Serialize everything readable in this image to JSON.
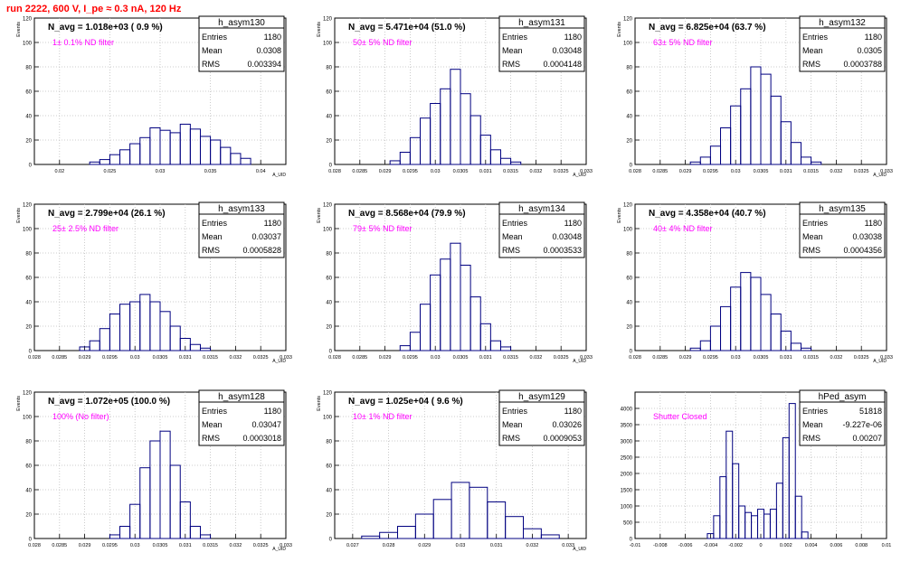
{
  "page": {
    "title": "run 2222,   600 V, I_pe ≈ 0.3 nA, 120 Hz"
  },
  "stats_labels": {
    "entries": "Entries",
    "mean": "Mean",
    "rms": "RMS"
  },
  "colors": {
    "hist_line": "#000080",
    "grid": "#bfbfbf",
    "note_text": "#ff00ff",
    "title_text": "#ff0000"
  },
  "panels": [
    {
      "name": "h_asym130",
      "navg": "N_avg = 1.018e+03 ( 0.9 %)",
      "filter": "1± 0.1% ND filter",
      "stats": {
        "entries": "1180",
        "mean": "0.0308",
        "rms": "0.003394"
      },
      "xlabel": "A_UID",
      "ylabel": "Events",
      "xticks": [
        "0.02",
        "0.025",
        "0.03",
        "0.035",
        "0.04"
      ],
      "yticks": [
        "0",
        "20",
        "40",
        "60",
        "80",
        "100",
        "120"
      ]
    },
    {
      "name": "h_asym131",
      "navg": "N_avg = 5.471e+04 (51.0 %)",
      "filter": "50± 5% ND filter",
      "stats": {
        "entries": "1180",
        "mean": "0.03048",
        "rms": "0.0004148"
      },
      "xlabel": "A_UID",
      "ylabel": "Events",
      "xticks": [
        "0.028",
        "0.0285",
        "0.029",
        "0.0295",
        "0.03",
        "0.0305",
        "0.031",
        "0.0315",
        "0.032",
        "0.0325",
        "0.033"
      ],
      "yticks": [
        "0",
        "20",
        "40",
        "60",
        "80",
        "100",
        "120"
      ]
    },
    {
      "name": "h_asym132",
      "navg": "N_avg = 6.825e+04 (63.7 %)",
      "filter": "63± 5% ND filter",
      "stats": {
        "entries": "1180",
        "mean": "0.0305",
        "rms": "0.0003788"
      },
      "xlabel": "A_UID",
      "ylabel": "Events",
      "xticks": [
        "0.028",
        "0.0285",
        "0.029",
        "0.0295",
        "0.03",
        "0.0305",
        "0.031",
        "0.0315",
        "0.032",
        "0.0325",
        "0.033"
      ],
      "yticks": [
        "0",
        "20",
        "40",
        "60",
        "80",
        "100",
        "120"
      ]
    },
    {
      "name": "h_asym133",
      "navg": "N_avg = 2.799e+04 (26.1 %)",
      "filter": "25± 2.5% ND filter",
      "stats": {
        "entries": "1180",
        "mean": "0.03037",
        "rms": "0.0005828"
      },
      "xlabel": "A_UID",
      "ylabel": "Events",
      "xticks": [
        "0.028",
        "0.0285",
        "0.029",
        "0.0295",
        "0.03",
        "0.0305",
        "0.031",
        "0.0315",
        "0.032",
        "0.0325",
        "0.033"
      ],
      "yticks": [
        "0",
        "20",
        "40",
        "60",
        "80",
        "100",
        "120"
      ]
    },
    {
      "name": "h_asym134",
      "navg": "N_avg = 8.568e+04 (79.9 %)",
      "filter": "79± 5% ND filter",
      "stats": {
        "entries": "1180",
        "mean": "0.03048",
        "rms": "0.0003533"
      },
      "xlabel": "A_UID",
      "ylabel": "Events",
      "xticks": [
        "0.028",
        "0.0285",
        "0.029",
        "0.0295",
        "0.03",
        "0.0305",
        "0.031",
        "0.0315",
        "0.032",
        "0.0325",
        "0.033"
      ],
      "yticks": [
        "0",
        "20",
        "40",
        "60",
        "80",
        "100",
        "120"
      ]
    },
    {
      "name": "h_asym135",
      "navg": "N_avg = 4.358e+04 (40.7 %)",
      "filter": "40± 4% ND filter",
      "stats": {
        "entries": "1180",
        "mean": "0.03038",
        "rms": "0.0004356"
      },
      "xlabel": "A_UID",
      "ylabel": "Events",
      "xticks": [
        "0.028",
        "0.0285",
        "0.029",
        "0.0295",
        "0.03",
        "0.0305",
        "0.031",
        "0.0315",
        "0.032",
        "0.0325",
        "0.033"
      ],
      "yticks": [
        "0",
        "20",
        "40",
        "60",
        "80",
        "100",
        "120"
      ]
    },
    {
      "name": "h_asym128",
      "navg": "N_avg = 1.072e+05 (100.0 %)",
      "filter": "100% (No filter)",
      "stats": {
        "entries": "1180",
        "mean": "0.03047",
        "rms": "0.0003018"
      },
      "xlabel": "A_UID",
      "ylabel": "Events",
      "xticks": [
        "0.028",
        "0.0285",
        "0.029",
        "0.0295",
        "0.03",
        "0.0305",
        "0.031",
        "0.0315",
        "0.032",
        "0.0325",
        "0.033"
      ],
      "yticks": [
        "0",
        "20",
        "40",
        "60",
        "80",
        "100",
        "120"
      ]
    },
    {
      "name": "h_asym129",
      "navg": "N_avg = 1.025e+04 ( 9.6 %)",
      "filter": "10± 1% ND filter",
      "stats": {
        "entries": "1180",
        "mean": "0.03026",
        "rms": "0.0009053"
      },
      "xlabel": "A_UID",
      "ylabel": "Events",
      "xticks": [
        "0.027",
        "0.028",
        "0.029",
        "0.03",
        "0.031",
        "0.032",
        "0.033"
      ],
      "yticks": [
        "0",
        "20",
        "40",
        "60",
        "80",
        "100",
        "120"
      ]
    },
    {
      "name": "hPed_asym",
      "navg": "",
      "filter": "Shutter Closed",
      "stats": {
        "entries": "51818",
        "mean": "-9.227e-06",
        "rms": "0.00207"
      },
      "xlabel": "",
      "ylabel": "",
      "xticks": [
        "-0.01",
        "-0.008",
        "-0.006",
        "-0.004",
        "-0.002",
        "0",
        "0.002",
        "0.004",
        "0.006",
        "0.008",
        "0.01"
      ],
      "yticks": [
        "0",
        "500",
        "1000",
        "1500",
        "2000",
        "2500",
        "3000",
        "3500",
        "4000"
      ]
    }
  ],
  "chart_data": [
    {
      "type": "bar",
      "title": "h_asym130",
      "xlabel": "A_UID",
      "ylabel": "Events",
      "xlim": [
        0.0175,
        0.0425
      ],
      "ylim": [
        0,
        120
      ],
      "grid": true,
      "legend": "top-right",
      "x": [
        0.0235,
        0.0245,
        0.0255,
        0.0265,
        0.0275,
        0.0285,
        0.0295,
        0.0305,
        0.0315,
        0.0325,
        0.0335,
        0.0345,
        0.0355,
        0.0365,
        0.0375,
        0.0385
      ],
      "values": [
        2,
        4,
        8,
        12,
        17,
        22,
        30,
        28,
        26,
        33,
        29,
        23,
        20,
        14,
        9,
        5
      ]
    },
    {
      "type": "bar",
      "title": "h_asym131",
      "xlabel": "A_UID",
      "ylabel": "Events",
      "xlim": [
        0.028,
        0.033
      ],
      "ylim": [
        0,
        120
      ],
      "grid": true,
      "legend": "top-right",
      "x": [
        0.0292,
        0.0294,
        0.0296,
        0.0298,
        0.03,
        0.0302,
        0.0304,
        0.0306,
        0.0308,
        0.031,
        0.0312,
        0.0314,
        0.0316
      ],
      "values": [
        3,
        10,
        22,
        38,
        50,
        62,
        78,
        58,
        40,
        24,
        12,
        5,
        2
      ]
    },
    {
      "type": "bar",
      "title": "h_asym132",
      "xlabel": "A_UID",
      "ylabel": "Events",
      "xlim": [
        0.028,
        0.033
      ],
      "ylim": [
        0,
        120
      ],
      "grid": true,
      "legend": "top-right",
      "x": [
        0.0292,
        0.0294,
        0.0296,
        0.0298,
        0.03,
        0.0302,
        0.0304,
        0.0306,
        0.0308,
        0.031,
        0.0312,
        0.0314,
        0.0316
      ],
      "values": [
        2,
        6,
        15,
        30,
        48,
        62,
        80,
        74,
        56,
        35,
        18,
        6,
        2
      ]
    },
    {
      "type": "bar",
      "title": "h_asym133",
      "xlabel": "A_UID",
      "ylabel": "Events",
      "xlim": [
        0.028,
        0.033
      ],
      "ylim": [
        0,
        120
      ],
      "grid": true,
      "legend": "top-right",
      "x": [
        0.029,
        0.0292,
        0.0294,
        0.0296,
        0.0298,
        0.03,
        0.0302,
        0.0304,
        0.0306,
        0.0308,
        0.031,
        0.0312,
        0.0314
      ],
      "values": [
        3,
        8,
        18,
        30,
        38,
        40,
        46,
        40,
        32,
        20,
        10,
        5,
        2
      ]
    },
    {
      "type": "bar",
      "title": "h_asym134",
      "xlabel": "A_UID",
      "ylabel": "Events",
      "xlim": [
        0.028,
        0.033
      ],
      "ylim": [
        0,
        120
      ],
      "grid": true,
      "legend": "top-right",
      "x": [
        0.0294,
        0.0296,
        0.0298,
        0.03,
        0.0302,
        0.0304,
        0.0306,
        0.0308,
        0.031,
        0.0312,
        0.0314
      ],
      "values": [
        4,
        15,
        38,
        62,
        75,
        88,
        70,
        44,
        22,
        8,
        3
      ]
    },
    {
      "type": "bar",
      "title": "h_asym135",
      "xlabel": "A_UID",
      "ylabel": "Events",
      "xlim": [
        0.028,
        0.033
      ],
      "ylim": [
        0,
        120
      ],
      "grid": true,
      "legend": "top-right",
      "x": [
        0.0292,
        0.0294,
        0.0296,
        0.0298,
        0.03,
        0.0302,
        0.0304,
        0.0306,
        0.0308,
        0.031,
        0.0312,
        0.0314
      ],
      "values": [
        2,
        8,
        20,
        36,
        52,
        64,
        60,
        46,
        30,
        16,
        6,
        2
      ]
    },
    {
      "type": "bar",
      "title": "h_asym128",
      "xlabel": "A_UID",
      "ylabel": "Events",
      "xlim": [
        0.028,
        0.033
      ],
      "ylim": [
        0,
        120
      ],
      "grid": true,
      "legend": "top-right",
      "x": [
        0.0296,
        0.0298,
        0.03,
        0.0302,
        0.0304,
        0.0306,
        0.0308,
        0.031,
        0.0312,
        0.0314
      ],
      "values": [
        3,
        10,
        28,
        58,
        80,
        88,
        60,
        30,
        10,
        3
      ]
    },
    {
      "type": "bar",
      "title": "h_asym129",
      "xlabel": "A_UID",
      "ylabel": "Events",
      "xlim": [
        0.0265,
        0.0335
      ],
      "ylim": [
        0,
        120
      ],
      "grid": true,
      "legend": "top-right",
      "x": [
        0.0275,
        0.028,
        0.0285,
        0.029,
        0.0295,
        0.03,
        0.0305,
        0.031,
        0.0315,
        0.032,
        0.0325
      ],
      "values": [
        2,
        5,
        10,
        20,
        32,
        46,
        42,
        30,
        18,
        8,
        3
      ]
    },
    {
      "type": "bar",
      "title": "hPed_asym",
      "xlabel": "",
      "ylabel": "",
      "xlim": [
        -0.01,
        0.01
      ],
      "ylim": [
        0,
        4500
      ],
      "grid": true,
      "legend": "top-right",
      "x": [
        -0.004,
        -0.0035,
        -0.003,
        -0.0025,
        -0.002,
        -0.0015,
        -0.001,
        -0.0005,
        0,
        0.0005,
        0.001,
        0.0015,
        0.002,
        0.0025,
        0.003,
        0.0035
      ],
      "values": [
        150,
        700,
        1900,
        3300,
        2300,
        1000,
        800,
        700,
        900,
        750,
        900,
        1700,
        3100,
        4150,
        1300,
        200
      ]
    }
  ]
}
